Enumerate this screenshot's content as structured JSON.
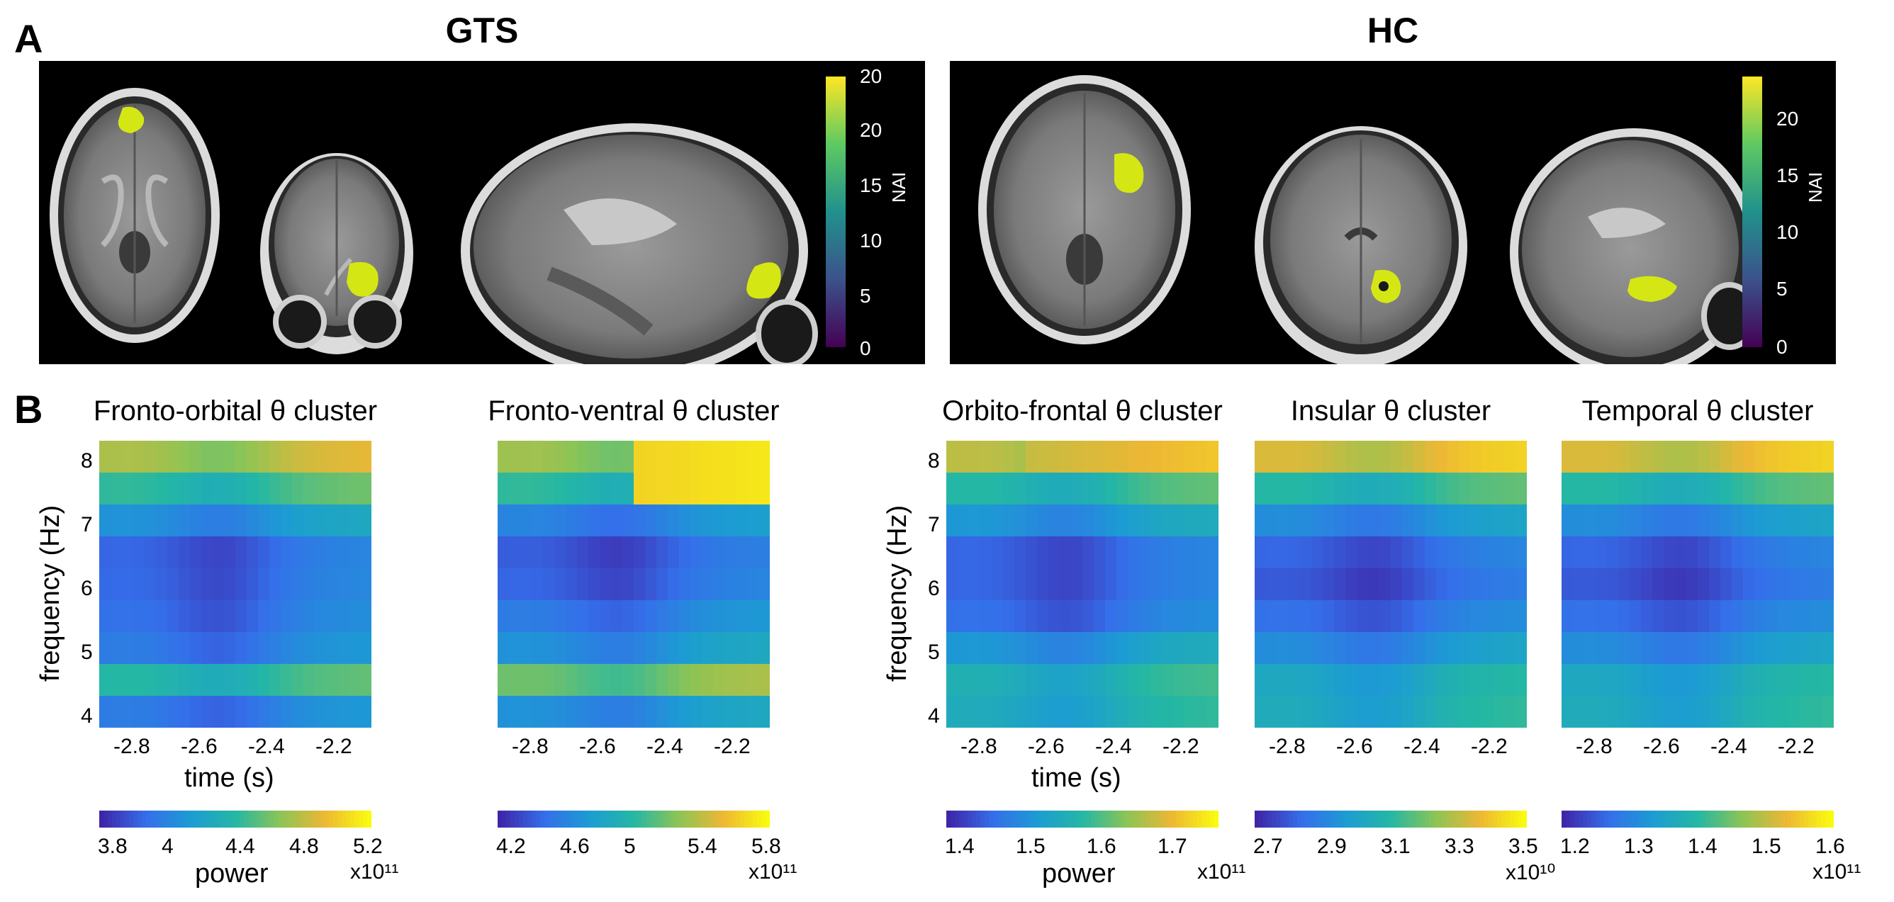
{
  "figure": {
    "panel_a_label": "A",
    "panel_b_label": "B",
    "groups": [
      {
        "title": "GTS",
        "colorbar_label": "NAI",
        "colorbar_ticks": [
          "0",
          "5",
          "10",
          "15",
          "20",
          "20"
        ]
      },
      {
        "title": "HC",
        "colorbar_label": "NAI",
        "colorbar_ticks": [
          "0",
          "5",
          "10",
          "15",
          "20"
        ]
      }
    ],
    "colors": {
      "viridis_low": "#440154",
      "viridis_high": "#fde725",
      "parula_low": "#3e26a8",
      "parula_high": "#f9fb0e"
    }
  },
  "chart_data": [
    {
      "type": "heatmap",
      "title": "Fronto-orbital θ cluster",
      "xlabel": "time (s)",
      "ylabel": "frequency (Hz)",
      "xticks": [
        "-2.8",
        "-2.6",
        "-2.4",
        "-2.2"
      ],
      "yticks": [
        "8",
        "7",
        "6",
        "5",
        "4"
      ],
      "colorbar": {
        "label": "power",
        "exponent": "x10¹¹",
        "ticks": [
          "3.8",
          "4",
          "4.4",
          "4.8",
          "5.2"
        ]
      }
    },
    {
      "type": "heatmap",
      "title": "Fronto-ventral θ cluster",
      "xlabel": "",
      "ylabel": "",
      "xticks": [
        "-2.8",
        "-2.6",
        "-2.4",
        "-2.2"
      ],
      "yticks": [],
      "colorbar": {
        "label": "",
        "exponent": "x10¹¹",
        "ticks": [
          "4.2",
          "4.6",
          "5",
          "5.4",
          "5.8"
        ]
      }
    },
    {
      "type": "heatmap",
      "title": "Orbito-frontal θ cluster",
      "xlabel": "time (s)",
      "ylabel": "frequency (Hz)",
      "xticks": [
        "-2.8",
        "-2.6",
        "-2.4",
        "-2.2"
      ],
      "yticks": [
        "8",
        "7",
        "6",
        "5",
        "4"
      ],
      "colorbar": {
        "label": "power",
        "exponent": "x10¹¹",
        "ticks": [
          "1.4",
          "1.5",
          "1.6",
          "1.7"
        ]
      }
    },
    {
      "type": "heatmap",
      "title": "Insular θ cluster",
      "xlabel": "",
      "ylabel": "",
      "xticks": [
        "-2.8",
        "-2.6",
        "-2.4",
        "-2.2"
      ],
      "yticks": [],
      "colorbar": {
        "label": "",
        "exponent": "x10¹⁰",
        "ticks": [
          "2.7",
          "2.9",
          "3.1",
          "3.3",
          "3.5"
        ]
      }
    },
    {
      "type": "heatmap",
      "title": "Temporal θ cluster",
      "xlabel": "",
      "ylabel": "",
      "xticks": [
        "-2.8",
        "-2.6",
        "-2.4",
        "-2.2"
      ],
      "yticks": [],
      "colorbar": {
        "label": "",
        "exponent": "x10¹¹",
        "ticks": [
          "1.2",
          "1.3",
          "1.4",
          "1.5",
          "1.6"
        ]
      }
    }
  ]
}
